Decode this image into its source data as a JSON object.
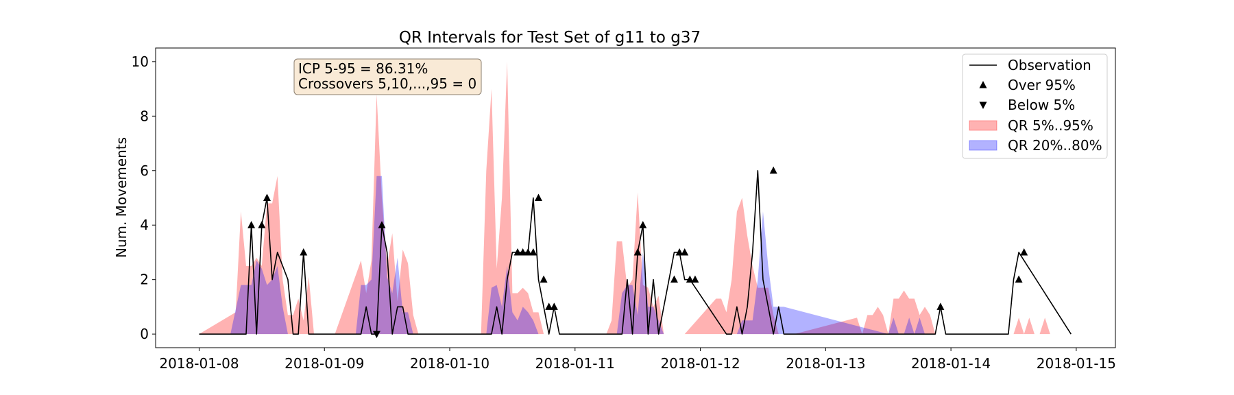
{
  "chart_data": {
    "type": "line",
    "title": "QR Intervals for Test Set of g11 to g37",
    "xlabel": "",
    "ylabel": "Num. Movements",
    "xlim": [
      "2018-01-07T15:40",
      "2018-01-15T07:30"
    ],
    "ylim": [
      -0.5,
      10.5
    ],
    "x_ticks": [
      "2018-01-08",
      "2018-01-09",
      "2018-01-10",
      "2018-01-11",
      "2018-01-12",
      "2018-01-13",
      "2018-01-14",
      "2018-01-15"
    ],
    "y_ticks": [
      0,
      2,
      4,
      6,
      8,
      10
    ],
    "grid": false,
    "legend_position": "top-right",
    "legend": [
      "Observation",
      "Over 95%",
      "Below 5%",
      "QR 5%..95%",
      "QR 20%..80%"
    ],
    "annotation": {
      "lines": [
        "ICP 5-95 = 86.31%",
        "Crossovers 5,10,...,95 = 0"
      ],
      "position": "top-left"
    },
    "colors": {
      "observation": "#000000",
      "qr_5_95": "#ff0000",
      "qr_20_80": "#0000ff",
      "annotation_bg": "#f9ead6",
      "annotation_border": "#8a7d6e"
    },
    "series": [
      {
        "name": "Observation",
        "x": [
          "2018-01-08T00:00",
          "2018-01-08T06:00",
          "2018-01-08T09:00",
          "2018-01-08T10:00",
          "2018-01-08T11:00",
          "2018-01-08T12:00",
          "2018-01-08T13:00",
          "2018-01-08T14:00",
          "2018-01-08T15:00",
          "2018-01-08T17:00",
          "2018-01-08T18:00",
          "2018-01-08T19:00",
          "2018-01-08T20:00",
          "2018-01-08T21:00",
          "2018-01-08T22:00",
          "2018-01-08T23:00",
          "2018-01-09T05:00",
          "2018-01-09T07:00",
          "2018-01-09T08:00",
          "2018-01-09T09:00",
          "2018-01-09T10:00",
          "2018-01-09T11:00",
          "2018-01-09T12:00",
          "2018-01-09T13:00",
          "2018-01-09T14:00",
          "2018-01-09T15:00",
          "2018-01-09T16:00",
          "2018-01-10T08:00",
          "2018-01-10T09:00",
          "2018-01-10T10:00",
          "2018-01-10T11:00",
          "2018-01-10T12:00",
          "2018-01-10T13:00",
          "2018-01-10T14:00",
          "2018-01-10T15:00",
          "2018-01-10T16:00",
          "2018-01-10T17:00",
          "2018-01-10T18:00",
          "2018-01-10T19:00",
          "2018-01-10T20:00",
          "2018-01-10T21:00",
          "2018-01-11T06:00",
          "2018-01-11T09:00",
          "2018-01-11T10:00",
          "2018-01-11T11:00",
          "2018-01-11T12:00",
          "2018-01-11T13:00",
          "2018-01-11T14:00",
          "2018-01-11T15:00",
          "2018-01-11T16:00",
          "2018-01-11T17:00",
          "2018-01-11T18:00",
          "2018-01-11T19:00",
          "2018-01-11T20:00",
          "2018-01-11T21:00",
          "2018-01-11T22:00",
          "2018-01-12T05:00",
          "2018-01-12T06:00",
          "2018-01-12T07:00",
          "2018-01-12T08:00",
          "2018-01-12T09:00",
          "2018-01-12T10:00",
          "2018-01-12T11:00",
          "2018-01-12T12:00",
          "2018-01-12T13:00",
          "2018-01-12T14:00",
          "2018-01-12T15:00",
          "2018-01-12T16:00",
          "2018-01-13T21:00",
          "2018-01-13T22:00",
          "2018-01-13T23:00",
          "2018-01-14T10:00",
          "2018-01-14T11:00",
          "2018-01-14T12:00",
          "2018-01-14T13:00",
          "2018-01-14T23:00"
        ],
        "values": [
          0,
          0,
          0,
          4,
          0,
          4,
          5,
          2,
          3,
          2,
          0,
          0,
          3,
          0,
          0,
          0,
          0,
          0,
          1,
          0,
          0,
          4,
          3,
          0,
          1,
          1,
          0,
          0,
          1,
          0,
          2,
          3,
          3,
          3,
          3,
          5,
          2,
          1,
          0,
          1,
          0,
          0,
          0,
          2,
          0,
          3,
          4,
          0,
          2,
          0,
          1,
          2,
          3,
          3,
          2,
          2,
          0,
          0,
          1,
          0,
          1,
          3,
          6,
          2,
          1,
          0,
          1,
          0,
          0,
          1,
          0,
          0,
          0,
          2,
          3,
          0
        ]
      },
      {
        "name": "Over 95%",
        "x": [
          "2018-01-08T10:00",
          "2018-01-08T12:00",
          "2018-01-08T13:00",
          "2018-01-08T20:00",
          "2018-01-09T11:00",
          "2018-01-10T13:00",
          "2018-01-10T14:00",
          "2018-01-10T15:00",
          "2018-01-10T16:00",
          "2018-01-10T17:00",
          "2018-01-10T18:00",
          "2018-01-10T19:00",
          "2018-01-10T20:00",
          "2018-01-11T12:00",
          "2018-01-11T13:00",
          "2018-01-11T19:00",
          "2018-01-11T20:00",
          "2018-01-11T21:00",
          "2018-01-11T22:00",
          "2018-01-11T23:00",
          "2018-01-12T14:00",
          "2018-01-13T22:00",
          "2018-01-14T13:00",
          "2018-01-14T14:00"
        ],
        "values": [
          4,
          4,
          5,
          3,
          4,
          3,
          3,
          3,
          3,
          5,
          2,
          1,
          1,
          3,
          4,
          2,
          3,
          3,
          2,
          2,
          6,
          1,
          2,
          3
        ]
      },
      {
        "name": "Below 5%",
        "x": [
          "2018-01-09T10:00"
        ],
        "values": [
          0
        ]
      },
      {
        "name": "QR 5%..95%",
        "x": [
          "2018-01-08T00:00",
          "2018-01-08T07:00",
          "2018-01-08T08:00",
          "2018-01-08T09:00",
          "2018-01-08T10:00",
          "2018-01-08T11:00",
          "2018-01-08T12:00",
          "2018-01-08T13:00",
          "2018-01-08T14:00",
          "2018-01-08T15:00",
          "2018-01-08T16:00",
          "2018-01-08T17:00",
          "2018-01-08T18:00",
          "2018-01-08T19:00",
          "2018-01-08T20:00",
          "2018-01-08T21:00",
          "2018-01-08T22:00",
          "2018-01-08T23:00",
          "2018-01-09T00:00",
          "2018-01-09T01:00",
          "2018-01-09T02:00",
          "2018-01-09T07:00",
          "2018-01-09T08:00",
          "2018-01-09T09:00",
          "2018-01-09T10:00",
          "2018-01-09T11:00",
          "2018-01-09T12:00",
          "2018-01-09T13:00",
          "2018-01-09T14:00",
          "2018-01-09T15:00",
          "2018-01-09T16:00",
          "2018-01-09T17:00",
          "2018-01-09T18:00",
          "2018-01-09T19:00",
          "2018-01-09T20:00",
          "2018-01-09T21:00",
          "2018-01-10T06:00",
          "2018-01-10T07:00",
          "2018-01-10T08:00",
          "2018-01-10T09:00",
          "2018-01-10T10:00",
          "2018-01-10T11:00",
          "2018-01-10T12:00",
          "2018-01-10T13:00",
          "2018-01-10T14:00",
          "2018-01-10T15:00",
          "2018-01-10T16:00",
          "2018-01-10T17:00",
          "2018-01-10T18:00",
          "2018-01-10T19:00",
          "2018-01-10T20:00",
          "2018-01-11T06:00",
          "2018-01-11T07:00",
          "2018-01-11T08:00",
          "2018-01-11T09:00",
          "2018-01-11T10:00",
          "2018-01-11T11:00",
          "2018-01-11T12:00",
          "2018-01-11T13:00",
          "2018-01-11T14:00",
          "2018-01-11T15:00",
          "2018-01-11T16:00",
          "2018-01-11T17:00",
          "2018-01-11T18:00",
          "2018-01-11T19:00",
          "2018-01-11T20:00",
          "2018-01-11T21:00",
          "2018-01-12T03:00",
          "2018-01-12T04:00",
          "2018-01-12T05:00",
          "2018-01-12T06:00",
          "2018-01-12T07:00",
          "2018-01-12T08:00",
          "2018-01-12T09:00",
          "2018-01-12T10:00",
          "2018-01-12T11:00",
          "2018-01-12T12:00",
          "2018-01-12T13:00",
          "2018-01-12T14:00",
          "2018-01-12T15:00",
          "2018-01-12T16:00",
          "2018-01-12T17:00",
          "2018-01-12T18:00",
          "2018-01-13T06:00",
          "2018-01-13T07:00",
          "2018-01-13T08:00",
          "2018-01-13T09:00",
          "2018-01-13T10:00",
          "2018-01-13T11:00",
          "2018-01-13T12:00",
          "2018-01-13T13:00",
          "2018-01-13T14:00",
          "2018-01-13T15:00",
          "2018-01-13T16:00",
          "2018-01-13T17:00",
          "2018-01-13T18:00",
          "2018-01-13T19:00",
          "2018-01-13T20:00",
          "2018-01-13T21:00",
          "2018-01-13T22:00",
          "2018-01-14T12:00",
          "2018-01-14T13:00",
          "2018-01-14T14:00",
          "2018-01-14T15:00",
          "2018-01-14T16:00",
          "2018-01-14T17:00",
          "2018-01-14T18:00",
          "2018-01-14T19:00",
          "2018-01-14T20:00",
          "2018-01-14T21:00"
        ],
        "upper": [
          0,
          0.8,
          4.5,
          2.5,
          2.5,
          2.8,
          2.5,
          4.8,
          4.8,
          5.8,
          2.0,
          0.7,
          0.7,
          1.3,
          0.5,
          2.1,
          0,
          0,
          0,
          0,
          0,
          2.7,
          1.5,
          2.7,
          8.8,
          5.0,
          2.5,
          3.7,
          1.2,
          3.1,
          2.6,
          0.7,
          0,
          0,
          0,
          0,
          0,
          6.0,
          9.0,
          2.4,
          5.0,
          10.0,
          1.5,
          1.5,
          1.7,
          1.5,
          0.8,
          0.8,
          0,
          0,
          0,
          0,
          0.5,
          3.4,
          3.4,
          1.7,
          2.0,
          5.2,
          1.8,
          1.7,
          1.0,
          1.4,
          0,
          0,
          0,
          0,
          0,
          1.3,
          1.3,
          0.8,
          2.0,
          4.5,
          5.0,
          3.6,
          2.5,
          1.7,
          1.7,
          1.7,
          0.7,
          0,
          0,
          0,
          0,
          0.6,
          0,
          0.7,
          0.7,
          1.0,
          0.7,
          0,
          1.3,
          1.3,
          1.6,
          1.3,
          1.3,
          0.7,
          1.0,
          0.7,
          0,
          0,
          0,
          0.6,
          0,
          0.6,
          0,
          0,
          0.6,
          0,
          0,
          0
        ],
        "lower": [
          0,
          0,
          0,
          0,
          0,
          0,
          0,
          0,
          0,
          0,
          0,
          0,
          0,
          0,
          0,
          0,
          0,
          0,
          0,
          0,
          0,
          0,
          0,
          0,
          0,
          0,
          0,
          0,
          0,
          0,
          0,
          0,
          0,
          0,
          0,
          0,
          0,
          0,
          0,
          0,
          0,
          0,
          0,
          0,
          0,
          0,
          0,
          0,
          0,
          0,
          0,
          0,
          0,
          0,
          0,
          0,
          0,
          0,
          0,
          0,
          0,
          0,
          0,
          0,
          0,
          0,
          0,
          0,
          0,
          0,
          0,
          0,
          0,
          0,
          0,
          0,
          0,
          0,
          0,
          0,
          0,
          0,
          0,
          0,
          0,
          0,
          0,
          0,
          0,
          0,
          0,
          0,
          0,
          0,
          0,
          0,
          0,
          0,
          0,
          0,
          0,
          0,
          0,
          0,
          0,
          0,
          0,
          0,
          0,
          0
        ]
      },
      {
        "name": "QR 20%..80%",
        "x": [
          "2018-01-08T06:00",
          "2018-01-08T08:00",
          "2018-01-08T09:00",
          "2018-01-08T10:00",
          "2018-01-08T11:00",
          "2018-01-08T12:00",
          "2018-01-08T13:00",
          "2018-01-08T14:00",
          "2018-01-08T15:00",
          "2018-01-08T16:00",
          "2018-01-08T17:00",
          "2018-01-08T18:00",
          "2018-01-09T06:00",
          "2018-01-09T07:00",
          "2018-01-09T08:00",
          "2018-01-09T09:00",
          "2018-01-09T10:00",
          "2018-01-09T11:00",
          "2018-01-09T12:00",
          "2018-01-09T13:00",
          "2018-01-09T14:00",
          "2018-01-09T15:00",
          "2018-01-09T16:00",
          "2018-01-09T17:00",
          "2018-01-10T07:00",
          "2018-01-10T08:00",
          "2018-01-10T09:00",
          "2018-01-10T10:00",
          "2018-01-10T11:00",
          "2018-01-10T12:00",
          "2018-01-10T13:00",
          "2018-01-10T14:00",
          "2018-01-10T15:00",
          "2018-01-10T16:00",
          "2018-01-10T17:00",
          "2018-01-11T08:00",
          "2018-01-11T09:00",
          "2018-01-11T10:00",
          "2018-01-11T11:00",
          "2018-01-11T12:00",
          "2018-01-11T13:00",
          "2018-01-11T14:00",
          "2018-01-11T15:00",
          "2018-01-11T16:00",
          "2018-01-11T17:00",
          "2018-01-12T07:00",
          "2018-01-12T08:00",
          "2018-01-12T09:00",
          "2018-01-12T10:00",
          "2018-01-12T11:00",
          "2018-01-12T12:00",
          "2018-01-12T13:00",
          "2018-01-12T14:00",
          "2018-01-12T15:00",
          "2018-01-12T16:00",
          "2018-01-13T12:00",
          "2018-01-13T13:00",
          "2018-01-13T14:00",
          "2018-01-13T15:00",
          "2018-01-13T16:00",
          "2018-01-13T17:00",
          "2018-01-13T18:00",
          "2018-01-13T19:00",
          "2018-01-13T20:00"
        ],
        "upper": [
          0,
          1.8,
          1.8,
          1.8,
          2.7,
          2.4,
          1.8,
          2.0,
          2.5,
          1.0,
          0,
          0,
          0,
          1.8,
          1.8,
          2.0,
          5.8,
          5.8,
          2.1,
          1.5,
          2.8,
          0.8,
          0.8,
          0,
          0,
          1.7,
          1.8,
          1.0,
          2.5,
          0.8,
          0.5,
          1.0,
          0.8,
          0.5,
          0,
          0,
          1.5,
          1.8,
          1.8,
          0.7,
          3.0,
          1.0,
          1.0,
          0.5,
          0,
          0,
          0.5,
          0.5,
          0.5,
          2.0,
          4.5,
          2.5,
          1.0,
          1.0,
          1.0,
          0,
          0.6,
          0,
          0,
          0.6,
          0,
          0.6,
          0,
          0
        ],
        "lower": [
          0,
          0,
          0,
          0,
          0,
          0,
          0,
          0,
          0,
          0,
          0,
          0,
          0,
          0,
          0,
          0,
          0,
          0,
          0,
          0,
          0,
          0,
          0,
          0,
          0,
          0,
          0,
          0,
          0,
          0,
          0,
          0,
          0,
          0,
          0,
          0,
          0,
          0,
          0,
          0,
          0,
          0,
          0,
          0,
          0,
          0,
          0,
          0,
          0,
          0,
          0,
          0,
          0,
          0,
          0,
          0,
          0,
          0,
          0,
          0,
          0,
          0,
          0,
          0
        ]
      }
    ]
  }
}
